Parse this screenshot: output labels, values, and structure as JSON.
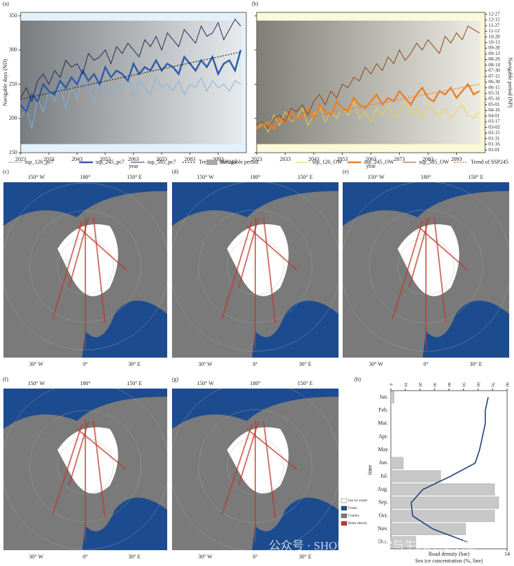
{
  "chart_data": [
    {
      "type": "line",
      "panel": "(a)",
      "ylabel": "Navigable days (ND)",
      "xlabel": "year",
      "background": "#e3f2fa",
      "xlim": [
        2023,
        2103
      ],
      "xticks": [
        2023,
        2033,
        2043,
        2053,
        2063,
        2073,
        2083,
        2093
      ],
      "ylim": [
        150,
        355
      ],
      "yticks": [
        150,
        200,
        250,
        300,
        350
      ],
      "x": [
        2023,
        2025,
        2027,
        2029,
        2031,
        2033,
        2035,
        2037,
        2039,
        2041,
        2043,
        2045,
        2047,
        2049,
        2051,
        2053,
        2055,
        2057,
        2059,
        2061,
        2063,
        2065,
        2067,
        2069,
        2071,
        2073,
        2075,
        2077,
        2079,
        2081,
        2083,
        2085,
        2087,
        2089,
        2091,
        2093,
        2095,
        2097,
        2099,
        2101
      ],
      "series": [
        {
          "name": "ssp_126_pc7",
          "color": "#7fb3de",
          "width": 1,
          "values": [
            200,
            215,
            185,
            230,
            210,
            240,
            225,
            250,
            215,
            245,
            230,
            260,
            240,
            225,
            255,
            245,
            235,
            250,
            240,
            265,
            230,
            255,
            245,
            235,
            260,
            245,
            250,
            240,
            255,
            235,
            250,
            245,
            260,
            240,
            255,
            245,
            250,
            240,
            255,
            250
          ]
        },
        {
          "name": "ssp_245_pc7",
          "color": "#2f5ca8",
          "width": 2.5,
          "values": [
            220,
            210,
            235,
            225,
            250,
            240,
            235,
            255,
            245,
            260,
            250,
            270,
            255,
            265,
            250,
            275,
            260,
            270,
            265,
            255,
            280,
            265,
            275,
            270,
            285,
            270,
            280,
            275,
            265,
            290,
            280,
            270,
            285,
            275,
            290,
            265,
            280,
            285,
            270,
            300
          ]
        },
        {
          "name": "ssp_585_pc7",
          "color": "#1f2a5c",
          "width": 1,
          "values": [
            230,
            245,
            225,
            255,
            265,
            250,
            270,
            260,
            285,
            275,
            280,
            265,
            295,
            285,
            290,
            300,
            280,
            305,
            295,
            310,
            300,
            290,
            315,
            305,
            320,
            300,
            325,
            315,
            305,
            330,
            320,
            310,
            335,
            320,
            325,
            340,
            315,
            330,
            345,
            335
          ]
        },
        {
          "name": "Trend of SSP245",
          "color": "#222222",
          "width": 1.2,
          "linestyle": "dotted",
          "x": [
            2023,
            2101
          ],
          "values": [
            228,
            297
          ]
        }
      ],
      "navigable_period": {
        "name": "Navigable period",
        "color": "#a8a8a8"
      }
    },
    {
      "type": "line",
      "panel": "(b)",
      "xlabel": "year",
      "y2label": "Navigable period (NP)",
      "background": "#fbf9d8",
      "xlim": [
        2023,
        2103
      ],
      "xticks": [
        2023,
        2033,
        2043,
        2053,
        2063,
        2073,
        2083,
        2093
      ],
      "ylim": [
        150,
        355
      ],
      "yticks": [
        150,
        200,
        250,
        300,
        350
      ],
      "y2lim": [
        -6,
        366
      ],
      "y2ticks": [
        {
          "value": 1,
          "label": "01-01"
        },
        {
          "value": 16,
          "label": "01-16"
        },
        {
          "value": 31,
          "label": "01-31"
        },
        {
          "value": 46,
          "label": "02-15"
        },
        {
          "value": 61,
          "label": "03-02"
        },
        {
          "value": 76,
          "label": "03-17"
        },
        {
          "value": 91,
          "label": "04-01"
        },
        {
          "value": 106,
          "label": "04-16"
        },
        {
          "value": 121,
          "label": "05-01"
        },
        {
          "value": 136,
          "label": "05-16"
        },
        {
          "value": 151,
          "label": "05-31"
        },
        {
          "value": 166,
          "label": "06-15"
        },
        {
          "value": 181,
          "label": "06-30"
        },
        {
          "value": 196,
          "label": "07-15"
        },
        {
          "value": 211,
          "label": "07-30"
        },
        {
          "value": 226,
          "label": "08-14"
        },
        {
          "value": 241,
          "label": "08-29"
        },
        {
          "value": 256,
          "label": "09-13"
        },
        {
          "value": 271,
          "label": "09-28"
        },
        {
          "value": 286,
          "label": "10-13"
        },
        {
          "value": 301,
          "label": "10-28"
        },
        {
          "value": 316,
          "label": "11-12"
        },
        {
          "value": 331,
          "label": "11-27"
        },
        {
          "value": 346,
          "label": "12-12"
        },
        {
          "value": 361,
          "label": "12-27"
        }
      ],
      "x": [
        2023,
        2025,
        2027,
        2029,
        2031,
        2033,
        2035,
        2037,
        2039,
        2041,
        2043,
        2045,
        2047,
        2049,
        2051,
        2053,
        2055,
        2057,
        2059,
        2061,
        2063,
        2065,
        2067,
        2069,
        2071,
        2073,
        2075,
        2077,
        2079,
        2081,
        2083,
        2085,
        2087,
        2089,
        2091,
        2093,
        2095,
        2097,
        2099,
        2101
      ],
      "series": [
        {
          "name": "ssp_126_OW",
          "color": "#f0cf45",
          "width": 1,
          "values": [
            185,
            195,
            180,
            205,
            190,
            210,
            195,
            200,
            215,
            190,
            205,
            220,
            195,
            210,
            200,
            215,
            205,
            225,
            200,
            210,
            195,
            215,
            205,
            220,
            200,
            210,
            225,
            205,
            215,
            200,
            220,
            210,
            205,
            215,
            200,
            210,
            220,
            205,
            200,
            210
          ]
        },
        {
          "name": "ssp_245_OW",
          "color": "#e8802a",
          "width": 2.5,
          "values": [
            185,
            190,
            195,
            185,
            200,
            195,
            210,
            200,
            205,
            215,
            200,
            220,
            210,
            205,
            225,
            215,
            210,
            230,
            220,
            215,
            225,
            235,
            220,
            230,
            225,
            240,
            230,
            220,
            235,
            245,
            230,
            225,
            240,
            235,
            245,
            230,
            240,
            250,
            235,
            240
          ]
        },
        {
          "name": "ssp_585_OW",
          "color": "#8b4513",
          "width": 1,
          "values": [
            190,
            195,
            185,
            200,
            205,
            195,
            215,
            210,
            220,
            205,
            225,
            235,
            220,
            240,
            230,
            250,
            245,
            260,
            255,
            275,
            265,
            280,
            270,
            290,
            280,
            300,
            285,
            295,
            310,
            300,
            315,
            305,
            295,
            320,
            310,
            325,
            315,
            335,
            330,
            325
          ]
        },
        {
          "name": "Trend of SSP245",
          "color": "#e8802a",
          "width": 1.5,
          "linestyle": "dotted",
          "x": [
            2023,
            2101
          ],
          "values": [
            188,
            250
          ]
        }
      ]
    },
    {
      "type": "map",
      "panel": "(c)",
      "lon_top": [
        "150° W",
        "180°",
        "150° E"
      ],
      "lon_bottom": [
        "30° W",
        "0°",
        "30° E"
      ]
    },
    {
      "type": "map",
      "panel": "(d)",
      "lon_top": [
        "150° W",
        "180°",
        "150° E"
      ],
      "lon_bottom": [
        "30° W",
        "0°",
        "30° E"
      ]
    },
    {
      "type": "map",
      "panel": "(e)",
      "lon_top": [
        "150° W",
        "180°",
        "150° E"
      ],
      "lon_bottom": [
        "30° W",
        "0°",
        "30° E"
      ]
    },
    {
      "type": "map",
      "panel": "(f)",
      "lon_top": [
        "150° W",
        "180°",
        "150° E"
      ],
      "lon_bottom": [
        "30° W",
        "0°",
        "30° E"
      ]
    },
    {
      "type": "map",
      "panel": "(g)",
      "lon_top": [
        "150° W",
        "180°",
        "150° E"
      ],
      "lon_bottom": [
        "30° W",
        "0°",
        "30° E"
      ],
      "legend": [
        {
          "name": "Sea ice extent",
          "color": "#ffffff"
        },
        {
          "name": "Ocean",
          "color": "#1d4b8f"
        },
        {
          "name": "Country",
          "color": "#7a7a7a"
        },
        {
          "name": "Route density",
          "color": "#c0392b"
        }
      ]
    },
    {
      "type": "bar_line",
      "panel": "(h)",
      "ylabel": "time",
      "categories": [
        "Jan.",
        "Feb.",
        "Mar.",
        "Apr.",
        "May",
        "Jun.",
        "Jul.",
        "Aug.",
        "Sep.",
        "Oct.",
        "Nov.",
        "Dec."
      ],
      "bars": {
        "name": "Road density (bar)",
        "color": "#c8c8c8",
        "values": [
          0.4,
          0,
          0,
          0,
          0,
          1.5,
          6,
          12.5,
          13,
          12.5,
          9,
          3
        ]
      },
      "line": {
        "name": "Sea ice concentration (%, line)",
        "color": "#1f3f7a",
        "values": [
          67,
          65,
          65,
          63,
          61,
          58,
          41,
          22,
          14,
          15,
          29,
          53
        ]
      },
      "xlim": [
        0,
        14
      ],
      "xticks": [
        14
      ],
      "x2lim": [
        0,
        80
      ],
      "x2ticks": [
        0,
        10,
        20,
        30,
        40,
        50,
        60,
        70,
        80
      ]
    }
  ],
  "watermark": "公众号 · SHOU海洋科学与生态环境学院"
}
